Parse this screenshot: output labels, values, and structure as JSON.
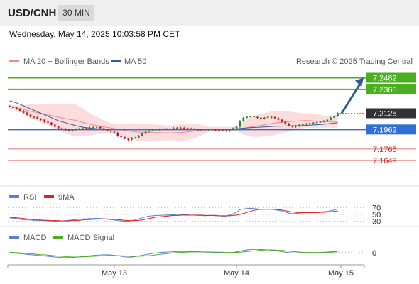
{
  "header": {
    "symbol": "USD/CNH",
    "interval": "30 MIN"
  },
  "datetime": "Wednesday, May 14, 2025 10:03:58 PM CET",
  "source": "Research © 2025 Trading Central",
  "legend": {
    "price": [
      {
        "label": "MA 20 + Bollinger Bands",
        "color": "#f28b82"
      },
      {
        "label": "MA 50",
        "color": "#2f5b9a"
      }
    ],
    "rsi": [
      {
        "label": "RSI",
        "color": "#5b7fd6"
      },
      {
        "label": "9MA",
        "color": "#e02020"
      }
    ],
    "macd": [
      {
        "label": "MACD",
        "color": "#5b7fd6"
      },
      {
        "label": "MACD Signal",
        "color": "#4caf22"
      }
    ]
  },
  "colors": {
    "up": "#2e7d32",
    "down": "#b71c1c",
    "band": "#fcdcdc",
    "resistance": "#4caf22",
    "support": "#2f6fd6",
    "lower": "#e57373",
    "arrow": "#2f5b9a"
  },
  "chart_data": [
    {
      "type": "candlestick",
      "ylim": [
        7.145,
        7.255
      ],
      "x_ticks": [
        "May 13",
        "May 14",
        "May 15"
      ],
      "current_price": 7.2125,
      "levels": [
        {
          "value": 7.2482,
          "label": "7.2482",
          "kind": "resistance"
        },
        {
          "value": 7.2365,
          "label": "7.2365",
          "kind": "resistance"
        },
        {
          "value": 7.1962,
          "label": "7.1962",
          "kind": "pivot"
        },
        {
          "value": 7.1765,
          "label": "7.1765",
          "kind": "support"
        },
        {
          "value": 7.1649,
          "label": "7.1649",
          "kind": "support"
        }
      ],
      "forecast": {
        "from": 7.2125,
        "to": 7.2482
      },
      "close": [
        7.219,
        7.218,
        7.217,
        7.215,
        7.213,
        7.211,
        7.209,
        7.2085,
        7.207,
        7.206,
        7.204,
        7.203,
        7.201,
        7.199,
        7.1975,
        7.197,
        7.1955,
        7.195,
        7.196,
        7.1965,
        7.197,
        7.1975,
        7.1972,
        7.198,
        7.1985,
        7.1988,
        7.1975,
        7.196,
        7.195,
        7.194,
        7.193,
        7.19,
        7.1885,
        7.187,
        7.186,
        7.1875,
        7.188,
        7.19,
        7.192,
        7.194,
        7.195,
        7.1955,
        7.1962,
        7.1965,
        7.197,
        7.1968,
        7.1972,
        7.1975,
        7.198,
        7.1978,
        7.1975,
        7.1972,
        7.1968,
        7.1965,
        7.1962,
        7.196,
        7.1958,
        7.1962,
        7.196,
        7.1957,
        7.1955,
        7.195,
        7.1948,
        7.196,
        7.1975,
        7.199,
        7.205,
        7.208,
        7.209,
        7.2095,
        7.2088,
        7.208,
        7.207,
        7.208,
        7.209,
        7.2085,
        7.2075,
        7.206,
        7.204,
        7.202,
        7.2,
        7.199,
        7.2,
        7.201,
        7.2015,
        7.202,
        7.2025,
        7.203,
        7.2035,
        7.204,
        7.205,
        7.206,
        7.208,
        7.21,
        7.2125
      ],
      "ma50": [
        7.225,
        7.224,
        7.223,
        7.2215,
        7.22,
        7.2185,
        7.217,
        7.2155,
        7.214,
        7.2125,
        7.211,
        7.2095,
        7.208,
        7.2065,
        7.205,
        7.204,
        7.203,
        7.202,
        7.201,
        7.2,
        7.1992,
        7.1985,
        7.198,
        7.1975,
        7.1972,
        7.197,
        7.1968,
        7.1966,
        7.1964,
        7.1962,
        7.196,
        7.196,
        7.196,
        7.196,
        7.196,
        7.196,
        7.196,
        7.196,
        7.196,
        7.196,
        7.196,
        7.196,
        7.196,
        7.196,
        7.196,
        7.196,
        7.196,
        7.196,
        7.196,
        7.196,
        7.196,
        7.196,
        7.196,
        7.196,
        7.196,
        7.196,
        7.196,
        7.196,
        7.196,
        7.196,
        7.196,
        7.196,
        7.196,
        7.1962,
        7.1965,
        7.1968,
        7.1972,
        7.1975,
        7.1978,
        7.198,
        7.1982,
        7.1984,
        7.1986,
        7.1988,
        7.199,
        7.1992,
        7.1994,
        7.1995,
        7.1996,
        7.1997,
        7.1998,
        7.1998,
        7.1999,
        7.2,
        7.2002,
        7.2004,
        7.2006,
        7.2008,
        7.201,
        7.2012,
        7.2015,
        7.2018,
        7.2022,
        7.2026,
        7.203
      ]
    },
    {
      "type": "line",
      "title": "RSI",
      "ylim": [
        25,
        75
      ],
      "y_ticks": [
        70,
        50,
        30
      ],
      "series": [
        {
          "name": "RSI",
          "values": [
            40,
            39,
            38,
            36,
            35,
            34,
            34,
            33,
            33,
            32,
            32,
            31,
            31,
            30,
            31,
            31,
            32,
            33,
            34,
            35,
            36,
            37,
            37,
            38,
            38,
            39,
            38,
            37,
            36,
            35,
            34,
            32,
            31,
            30,
            30,
            32,
            34,
            37,
            40,
            43,
            45,
            46,
            47,
            47,
            48,
            48,
            49,
            49,
            50,
            50,
            49,
            49,
            48,
            48,
            47,
            47,
            46,
            47,
            47,
            46,
            46,
            45,
            45,
            48,
            52,
            56,
            64,
            66,
            67,
            68,
            67,
            66,
            65,
            65,
            66,
            65,
            64,
            62,
            60,
            57,
            54,
            52,
            53,
            54,
            55,
            55,
            56,
            56,
            57,
            57,
            58,
            59,
            61,
            63,
            66
          ]
        },
        {
          "name": "9MA",
          "values": [
            42,
            41,
            40,
            39,
            38,
            37,
            36,
            35,
            34,
            34,
            33,
            33,
            32,
            32,
            32,
            31,
            31,
            31,
            32,
            32,
            33,
            34,
            35,
            35,
            36,
            36,
            37,
            37,
            37,
            36,
            36,
            35,
            34,
            33,
            32,
            32,
            32,
            33,
            34,
            36,
            38,
            40,
            42,
            43,
            44,
            45,
            46,
            47,
            47,
            48,
            48,
            48,
            48,
            48,
            48,
            48,
            47,
            47,
            47,
            47,
            46,
            46,
            46,
            46,
            47,
            48,
            50,
            53,
            56,
            59,
            62,
            64,
            65,
            65,
            65,
            65,
            65,
            64,
            63,
            61,
            59,
            57,
            56,
            55,
            55,
            55,
            55,
            55,
            55,
            56,
            56,
            57,
            58,
            59,
            60
          ]
        }
      ]
    },
    {
      "type": "line",
      "title": "MACD",
      "ylim": [
        -0.006,
        0.005
      ],
      "y_ticks": [
        0
      ],
      "series": [
        {
          "name": "MACD",
          "values": [
            0.0,
            -0.0002,
            -0.0004,
            -0.0006,
            -0.0008,
            -0.001,
            -0.0012,
            -0.0014,
            -0.0016,
            -0.0018,
            -0.002,
            -0.0022,
            -0.0024,
            -0.0026,
            -0.0028,
            -0.0029,
            -0.003,
            -0.003,
            -0.0029,
            -0.0027,
            -0.0025,
            -0.0023,
            -0.0021,
            -0.0019,
            -0.0017,
            -0.0015,
            -0.0014,
            -0.0013,
            -0.0013,
            -0.0014,
            -0.0016,
            -0.0019,
            -0.0022,
            -0.0025,
            -0.0027,
            -0.0026,
            -0.0024,
            -0.002,
            -0.0016,
            -0.0012,
            -0.0008,
            -0.0005,
            -0.0002,
            0.0,
            0.0002,
            0.0003,
            0.0004,
            0.0005,
            0.0006,
            0.0007,
            0.0007,
            0.0007,
            0.0006,
            0.0006,
            0.0005,
            0.0004,
            0.0003,
            0.0002,
            0.0002,
            0.0001,
            0.0,
            -0.0001,
            -0.0002,
            -0.0001,
            0.0001,
            0.0004,
            0.0009,
            0.0013,
            0.0016,
            0.0018,
            0.0019,
            0.0019,
            0.0018,
            0.0017,
            0.0016,
            0.0014,
            0.0012,
            0.0009,
            0.0006,
            0.0003,
            0.0,
            -0.0002,
            -0.0002,
            -0.0002,
            -0.0001,
            -0.0001,
            0.0,
            0.0,
            0.0001,
            0.0001,
            0.0002,
            0.0003,
            0.0005,
            0.0007,
            0.001
          ]
        },
        {
          "name": "MACD Signal",
          "values": [
            0.0002,
            0.0001,
            0.0,
            -0.0002,
            -0.0003,
            -0.0005,
            -0.0007,
            -0.0008,
            -0.001,
            -0.0012,
            -0.0013,
            -0.0015,
            -0.0017,
            -0.0019,
            -0.0021,
            -0.0022,
            -0.0024,
            -0.0025,
            -0.0026,
            -0.0026,
            -0.0026,
            -0.0025,
            -0.0024,
            -0.0023,
            -0.0022,
            -0.0021,
            -0.002,
            -0.0019,
            -0.0018,
            -0.0018,
            -0.0018,
            -0.0018,
            -0.0019,
            -0.002,
            -0.0021,
            -0.0022,
            -0.0022,
            -0.0022,
            -0.0021,
            -0.002,
            -0.0018,
            -0.0016,
            -0.0013,
            -0.0011,
            -0.0008,
            -0.0006,
            -0.0004,
            -0.0002,
            0.0,
            0.0001,
            0.0002,
            0.0003,
            0.0004,
            0.0004,
            0.0004,
            0.0004,
            0.0004,
            0.0004,
            0.0003,
            0.0003,
            0.0002,
            0.0002,
            0.0001,
            0.0001,
            0.0001,
            0.0001,
            0.0002,
            0.0004,
            0.0006,
            0.0008,
            0.001,
            0.0012,
            0.0014,
            0.0015,
            0.0016,
            0.0016,
            0.0015,
            0.0014,
            0.0013,
            0.0011,
            0.0009,
            0.0007,
            0.0005,
            0.0003,
            0.0002,
            0.0001,
            0.0001,
            0.0,
            0.0,
            0.0,
            0.0001,
            0.0001,
            0.0002,
            0.0003,
            0.0005
          ]
        }
      ]
    }
  ]
}
